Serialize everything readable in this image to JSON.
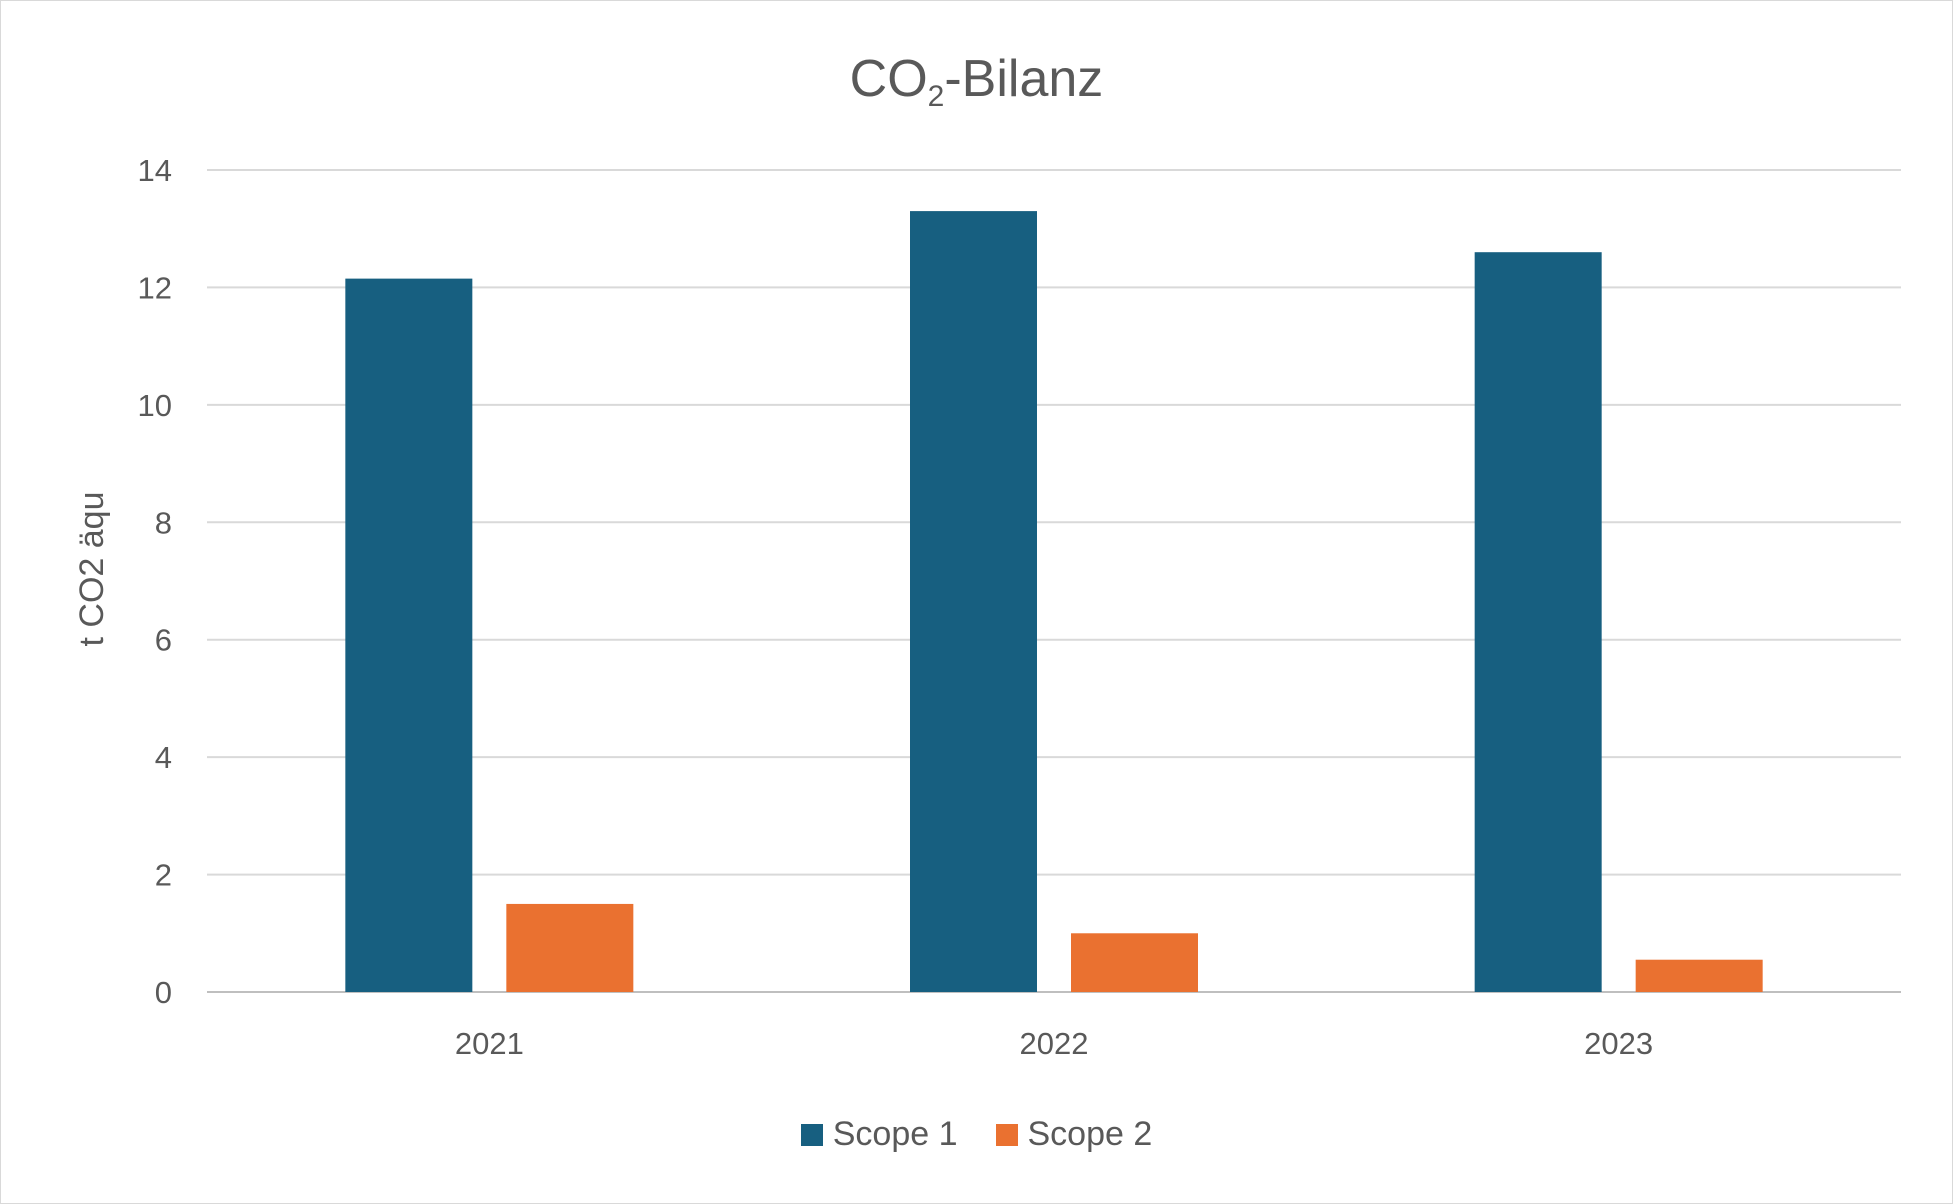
{
  "chart_data": {
    "type": "bar",
    "title": {
      "main": "CO",
      "subscript": "2",
      "suffix": "-Bilanz"
    },
    "xlabel": "",
    "ylabel": "t CO2 äqu",
    "categories": [
      "2021",
      "2022",
      "2023"
    ],
    "series": [
      {
        "name": "Scope 1",
        "color": "#175f80",
        "values": [
          12.15,
          13.3,
          12.6
        ]
      },
      {
        "name": "Scope 2",
        "color": "#ea7130",
        "values": [
          1.5,
          1.0,
          0.55
        ]
      }
    ],
    "ylim": [
      0,
      14
    ],
    "yticks": [
      0,
      2,
      4,
      6,
      8,
      10,
      12,
      14
    ],
    "grid": true,
    "legend_position": "bottom"
  }
}
